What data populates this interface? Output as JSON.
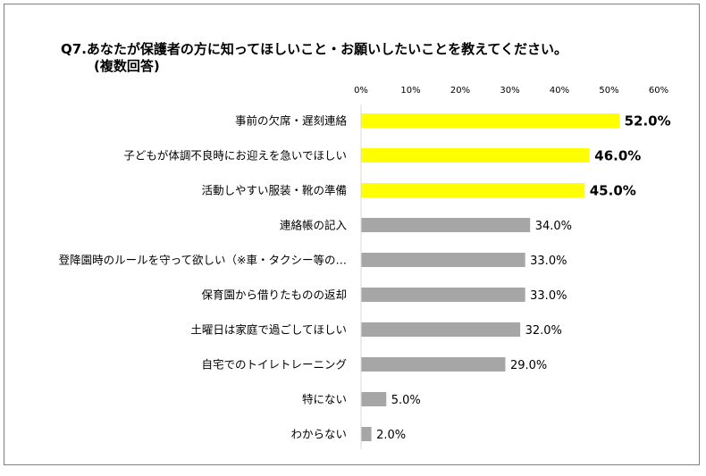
{
  "chart_data": {
    "type": "bar",
    "orientation": "horizontal",
    "title_line1": "Q7.あなたが保護者の方に知ってほしいこと・お願いしたいことを教えてください。",
    "title_line2": "(複数回答)",
    "categories": [
      "事前の欠席・遅刻連絡",
      "子どもが体調不良時にお迎えを急いでほしい",
      "活動しやすい服装・靴の準備",
      "連絡帳の記入",
      "登降園時のルールを守って欲しい（※車・タクシー等の…",
      "保育園から借りたものの返却",
      "土曜日は家庭で過ごしてほしい",
      "自宅でのトイレトレーニング",
      "特にない",
      "わからない"
    ],
    "values": [
      52.0,
      46.0,
      45.0,
      34.0,
      33.0,
      33.0,
      32.0,
      29.0,
      5.0,
      2.0
    ],
    "value_labels": [
      "52.0%",
      "46.0%",
      "45.0%",
      "34.0%",
      "33.0%",
      "33.0%",
      "32.0%",
      "29.0%",
      "5.0%",
      "2.0%"
    ],
    "highlight_top_n": 3,
    "xlim": [
      0,
      60
    ],
    "ticks": [
      0,
      10,
      20,
      30,
      40,
      50,
      60
    ],
    "tick_labels": [
      "0%",
      "10%",
      "20%",
      "30%",
      "40%",
      "50%",
      "60%"
    ],
    "grid": false,
    "colors": {
      "highlight": "#ffff00",
      "normal": "#a6a6a6",
      "axis": "#d9d9d9"
    }
  }
}
